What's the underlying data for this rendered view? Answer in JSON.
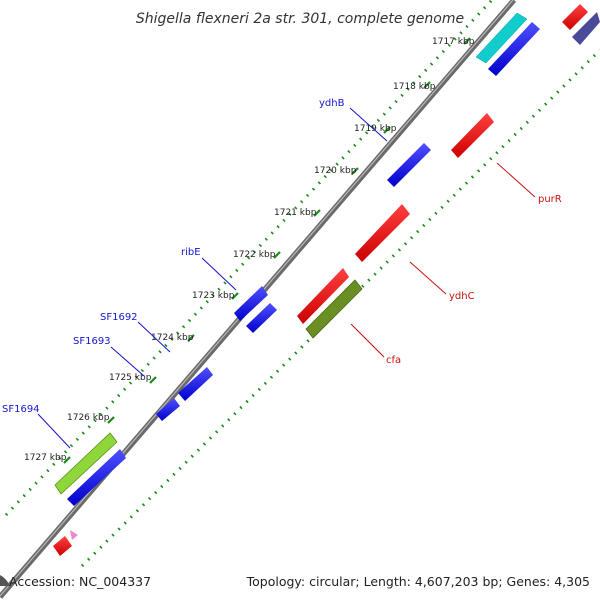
{
  "title": "Shigella flexneri 2a str. 301, complete genome",
  "footer": {
    "accession": "Accession: NC_004337",
    "summary": "Topology: circular; Length: 4,607,203 bp; Genes: 4,305"
  },
  "ticks": [
    "1717 kbp",
    "1718 kbp",
    "1719 kbp",
    "1720 kbp",
    "1721 kbp",
    "1722 kbp",
    "1723 kbp",
    "1724 kbp",
    "1725 kbp",
    "1726 kbp",
    "1727 kbp"
  ],
  "gene_labels": {
    "ydhB": "ydhB",
    "ribE": "ribE",
    "SF1692": "SF1692",
    "SF1693": "SF1693",
    "SF1694": "SF1694",
    "purR": "purR",
    "ydhC": "ydhC",
    "cfa": "cfa"
  },
  "colors": {
    "forward_gene": "#0000ee",
    "reverse_gene": "#ee0000",
    "highlight_cyan": "#11cccc",
    "olive_gene": "#6b8e23",
    "lime_gene": "#99ee33",
    "backbone": "#888888",
    "tick_dots": "#1a8a1a",
    "forward_label": "#1515cc",
    "reverse_label": "#cc1111"
  }
}
